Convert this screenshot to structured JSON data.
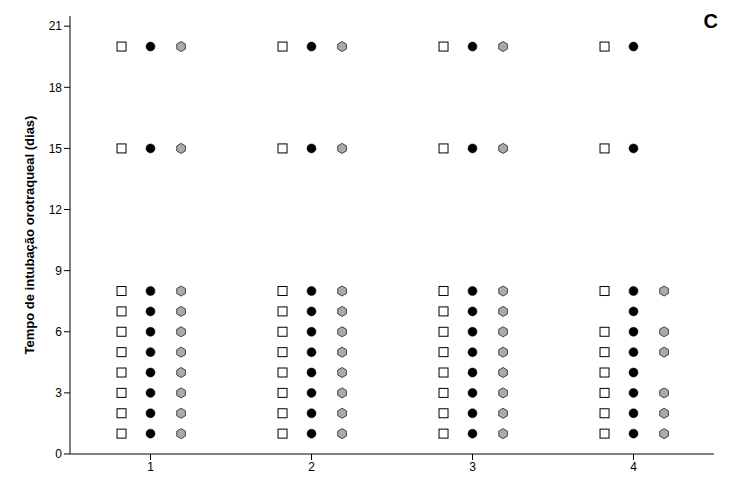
{
  "chart_data": {
    "type": "scatter",
    "annotation": "C",
    "y_label": "Tempo de intubação orotraqueal (dias)",
    "xlim": [
      0.5,
      4.5
    ],
    "xticks": [
      1,
      2,
      3,
      4
    ],
    "ylim": [
      0,
      21.5
    ],
    "yticks": [
      0,
      3,
      6,
      9,
      12,
      15,
      18,
      21
    ],
    "grid": false,
    "series": [
      {
        "marker": "open_square",
        "color": "#ffffff",
        "x": [
          0.82,
          0.82,
          0.82,
          0.82,
          0.82,
          0.82,
          0.82,
          0.82,
          0.82,
          0.82,
          1.82,
          1.82,
          1.82,
          1.82,
          1.82,
          1.82,
          1.82,
          1.82,
          1.82,
          1.82,
          2.82,
          2.82,
          2.82,
          2.82,
          2.82,
          2.82,
          2.82,
          2.82,
          2.82,
          2.82,
          3.82,
          3.82,
          3.82,
          3.82,
          3.82,
          3.82,
          3.82,
          3.82,
          3.82
        ],
        "values": [
          1,
          2,
          3,
          4,
          5,
          6,
          7,
          8,
          15,
          20,
          1,
          2,
          3,
          4,
          5,
          6,
          7,
          8,
          15,
          20,
          1,
          2,
          3,
          4,
          5,
          6,
          7,
          8,
          15,
          20,
          1,
          2,
          3,
          4,
          5,
          6,
          8,
          15,
          20
        ]
      },
      {
        "marker": "circle",
        "color": "#000000",
        "x": [
          1,
          1,
          1,
          1,
          1,
          1,
          1,
          1,
          1,
          1,
          2,
          2,
          2,
          2,
          2,
          2,
          2,
          2,
          2,
          2,
          3,
          3,
          3,
          3,
          3,
          3,
          3,
          3,
          3,
          3,
          4,
          4,
          4,
          4,
          4,
          4,
          4,
          4,
          4,
          4
        ],
        "values": [
          1,
          2,
          3,
          4,
          5,
          6,
          7,
          8,
          15,
          20,
          1,
          2,
          3,
          4,
          5,
          6,
          7,
          8,
          15,
          20,
          1,
          2,
          3,
          4,
          5,
          6,
          7,
          8,
          15,
          20,
          1,
          2,
          3,
          4,
          5,
          6,
          7,
          8,
          15,
          20
        ]
      },
      {
        "marker": "hexagon",
        "color": "#aaaaaa",
        "x": [
          1.19,
          1.19,
          1.19,
          1.19,
          1.19,
          1.19,
          1.19,
          1.19,
          1.19,
          1.19,
          2.19,
          2.19,
          2.19,
          2.19,
          2.19,
          2.19,
          2.19,
          2.19,
          2.19,
          2.19,
          3.19,
          3.19,
          3.19,
          3.19,
          3.19,
          3.19,
          3.19,
          3.19,
          3.19,
          3.19,
          4.19,
          4.19,
          4.19,
          4.19,
          4.19,
          4.19
        ],
        "values": [
          1,
          2,
          3,
          4,
          5,
          6,
          7,
          8,
          15,
          20,
          1,
          2,
          3,
          4,
          5,
          6,
          7,
          8,
          15,
          20,
          1,
          2,
          3,
          4,
          5,
          6,
          7,
          8,
          15,
          20,
          1,
          2,
          3,
          5,
          6,
          8
        ]
      }
    ]
  }
}
